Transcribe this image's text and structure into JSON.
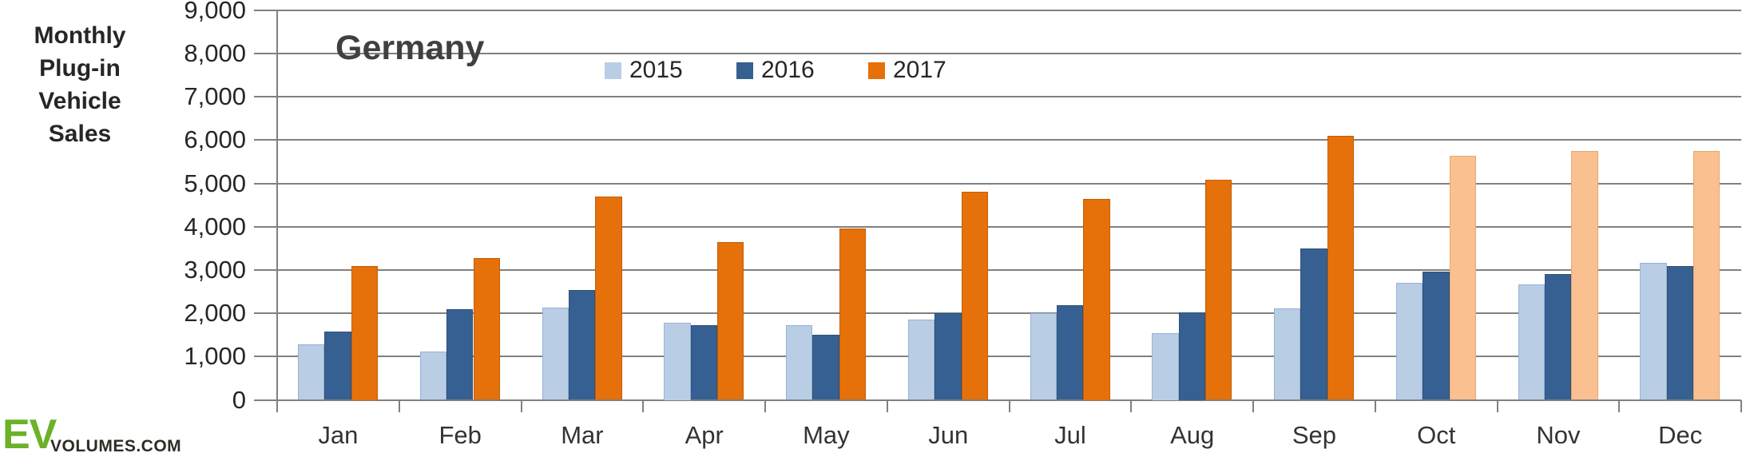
{
  "page": {
    "background": "#FFFFFF"
  },
  "branding": {
    "logo_ev": "EV",
    "logo_suffix": "VOLUMES.COM",
    "logo_ev_color": "#6CB228",
    "logo_suffix_color": "#2E2C24"
  },
  "chart_data": {
    "type": "bar",
    "title": "Germany",
    "axis_title": "Monthly Plug-in Vehicle Sales",
    "categories": [
      "Jan",
      "Feb",
      "Mar",
      "Apr",
      "May",
      "Jun",
      "Jul",
      "Aug",
      "Sep",
      "Oct",
      "Nov",
      "Dec"
    ],
    "series": [
      {
        "name": "2015",
        "color": "#B9CDE5",
        "border_color": "#95B3D7",
        "values": [
          1280,
          1110,
          2130,
          1780,
          1720,
          1860,
          2010,
          1540,
          2120,
          2710,
          2660,
          3170
        ]
      },
      {
        "name": "2016",
        "color": "#376092",
        "border_color": "#2E5179",
        "values": [
          1570,
          2090,
          2530,
          1730,
          1500,
          2000,
          2180,
          2030,
          3490,
          2960,
          2910,
          3090
        ]
      },
      {
        "name": "2017",
        "color": "#E6700A",
        "border_color": "#C05F08",
        "values": [
          3100,
          3270,
          4700,
          3640,
          3960,
          4800,
          4650,
          5080,
          6100,
          5630,
          5750,
          5750
        ],
        "estimated_from_index": 9,
        "estimated_color": "#FAC090",
        "estimated_border_color": "#E3A96F"
      }
    ],
    "ylim": [
      0,
      9000
    ],
    "ytick_step": 1000,
    "ytick_labels": [
      "0",
      "1,000",
      "2,000",
      "3,000",
      "4,000",
      "5,000",
      "6,000",
      "7,000",
      "8,000",
      "9,000"
    ],
    "grid": "horizontal",
    "gridline_color": "#808080",
    "legend_position": "top",
    "legend_labels": [
      "2015",
      "2016",
      "2017"
    ],
    "text_color": "#262626",
    "title_color": "#404040"
  }
}
